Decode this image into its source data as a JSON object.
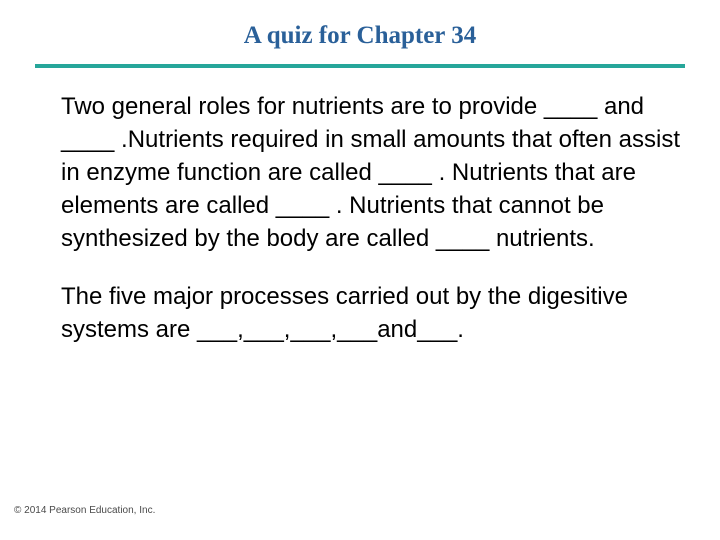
{
  "title": {
    "text": "A quiz for Chapter 34",
    "color": "#2a6099",
    "fontsize": 25
  },
  "divider": {
    "color": "#26a69a",
    "height": 4
  },
  "body": {
    "fontsize": 24,
    "color": "#000000",
    "line_height": 1.38
  },
  "bullets": [
    {
      "text": " Two general roles for nutrients are to provide ____ and ____ .Nutrients required in small amounts that often assist in enzyme function are called ____ . Nutrients that are elements are called ____ . Nutrients that cannot be synthesized by the body are called ____ nutrients."
    },
    {
      "text": "The five major processes carried out by the digesitive systems are ___,___,___,___and___."
    }
  ],
  "footer": {
    "text": "© 2014 Pearson Education, Inc.",
    "fontsize": 10,
    "color": "#4a4a4a"
  },
  "background_color": "#ffffff"
}
